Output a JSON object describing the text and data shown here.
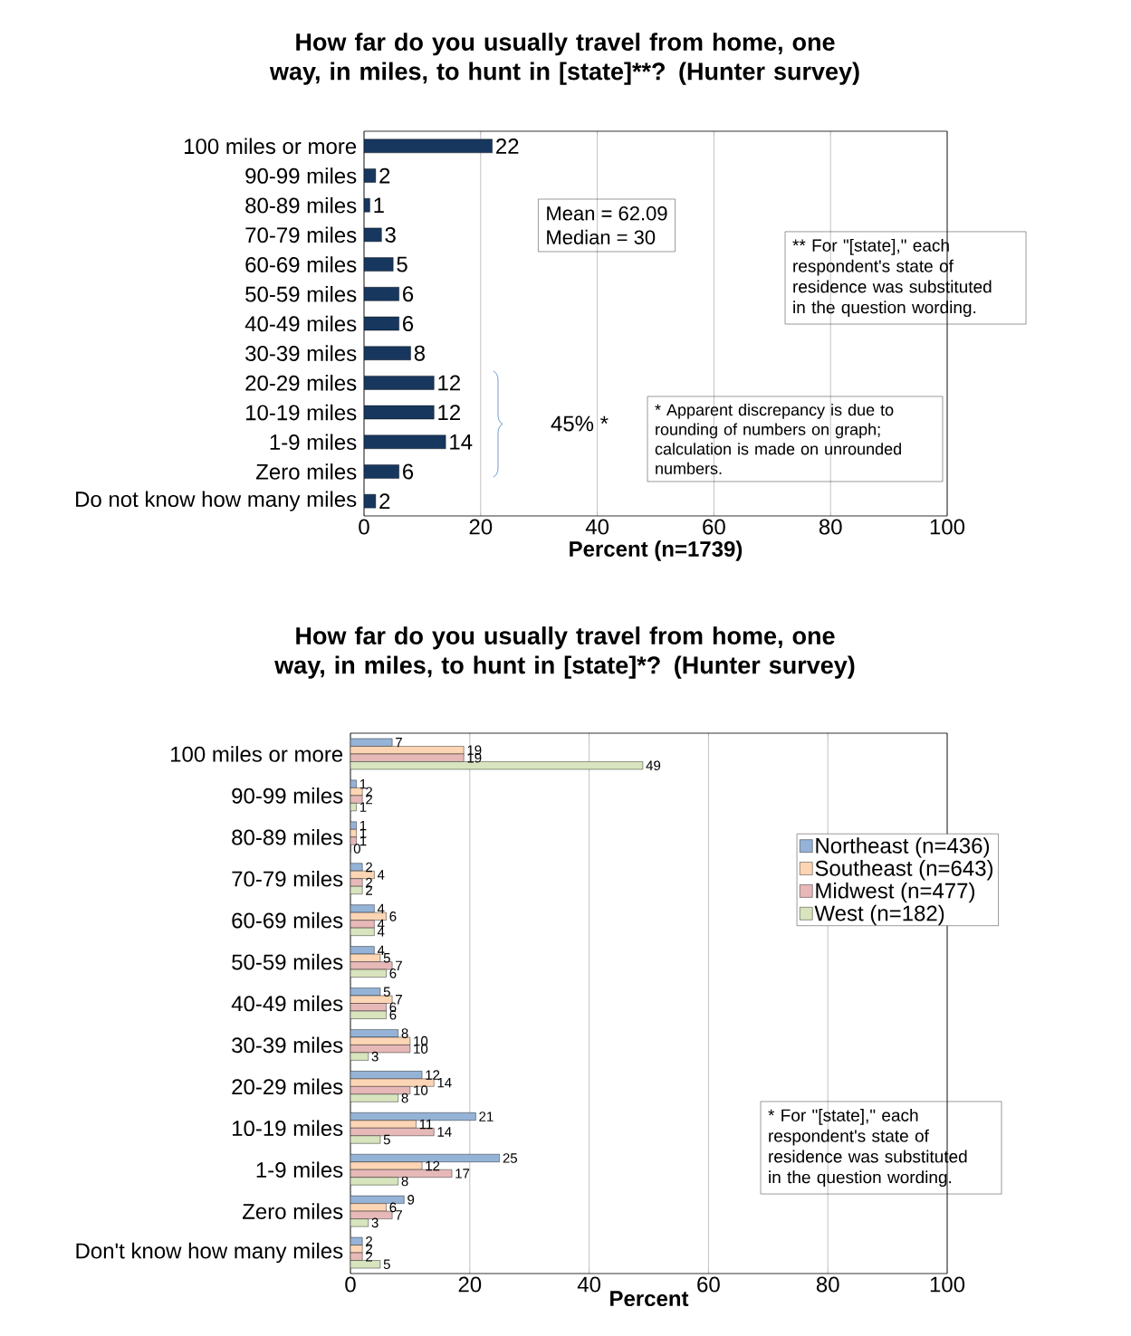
{
  "chart_data": [
    {
      "type": "bar",
      "orientation": "horizontal",
      "title": "How far do you usually travel from home, one way, in miles, to hunt in [state]**? (Hunter survey)",
      "xlabel": "Percent (n=1739)",
      "categories": [
        "100 miles or more",
        "90-99 miles",
        "80-89 miles",
        "70-79 miles",
        "60-69 miles",
        "50-59 miles",
        "40-49 miles",
        "30-39 miles",
        "20-29 miles",
        "10-19 miles",
        "1-9 miles",
        "Zero miles",
        "Do not know how many miles"
      ],
      "values": [
        22,
        2,
        1,
        3,
        5,
        6,
        6,
        8,
        12,
        12,
        14,
        6,
        2
      ],
      "color": "#17375e",
      "xlim": [
        0,
        100
      ],
      "xticks": [
        0,
        20,
        40,
        60,
        80,
        100
      ],
      "grid": "x",
      "data_labels": true,
      "annotations": [
        "Mean = 62.09",
        "Median = 30",
        "45% *",
        "* Apparent discrepancy is due to rounding of numbers on graph; calculation is made on unrounded numbers.",
        "** For \"[state],\" each respondent's state of residence was substituted in the question wording."
      ]
    },
    {
      "type": "bar",
      "orientation": "horizontal",
      "title": "How far do you usually travel from home, one way, in miles, to hunt in [state]*? (Hunter survey)",
      "xlabel": "Percent",
      "categories": [
        "100 miles or more",
        "90-99 miles",
        "80-89 miles",
        "70-79 miles",
        "60-69 miles",
        "50-59 miles",
        "40-49 miles",
        "30-39 miles",
        "20-29 miles",
        "10-19 miles",
        "1-9 miles",
        "Zero miles",
        "Don't know how many miles"
      ],
      "series": [
        {
          "name": "Northeast (n=436)",
          "color": "#95b3d7",
          "values": [
            7,
            1,
            1,
            2,
            4,
            4,
            5,
            8,
            12,
            21,
            25,
            9,
            2
          ]
        },
        {
          "name": "Southeast (n=643)",
          "color": "#fcd5b5",
          "values": [
            19,
            2,
            1,
            4,
            6,
            5,
            7,
            10,
            14,
            11,
            12,
            6,
            2
          ]
        },
        {
          "name": "Midwest (n=477)",
          "color": "#e6b9b8",
          "values": [
            19,
            2,
            1,
            2,
            4,
            7,
            6,
            10,
            10,
            14,
            17,
            7,
            2
          ]
        },
        {
          "name": "West (n=182)",
          "color": "#d7e4bd",
          "values": [
            49,
            1,
            0,
            2,
            4,
            6,
            6,
            3,
            8,
            5,
            8,
            3,
            5
          ]
        }
      ],
      "xlim": [
        0,
        100
      ],
      "xticks": [
        0,
        20,
        40,
        60,
        80,
        100
      ],
      "grid": "x",
      "data_labels": true,
      "legend": "right",
      "annotations": [
        "* For \"[state],\" each respondent's state of residence was substituted in the question wording."
      ]
    }
  ]
}
